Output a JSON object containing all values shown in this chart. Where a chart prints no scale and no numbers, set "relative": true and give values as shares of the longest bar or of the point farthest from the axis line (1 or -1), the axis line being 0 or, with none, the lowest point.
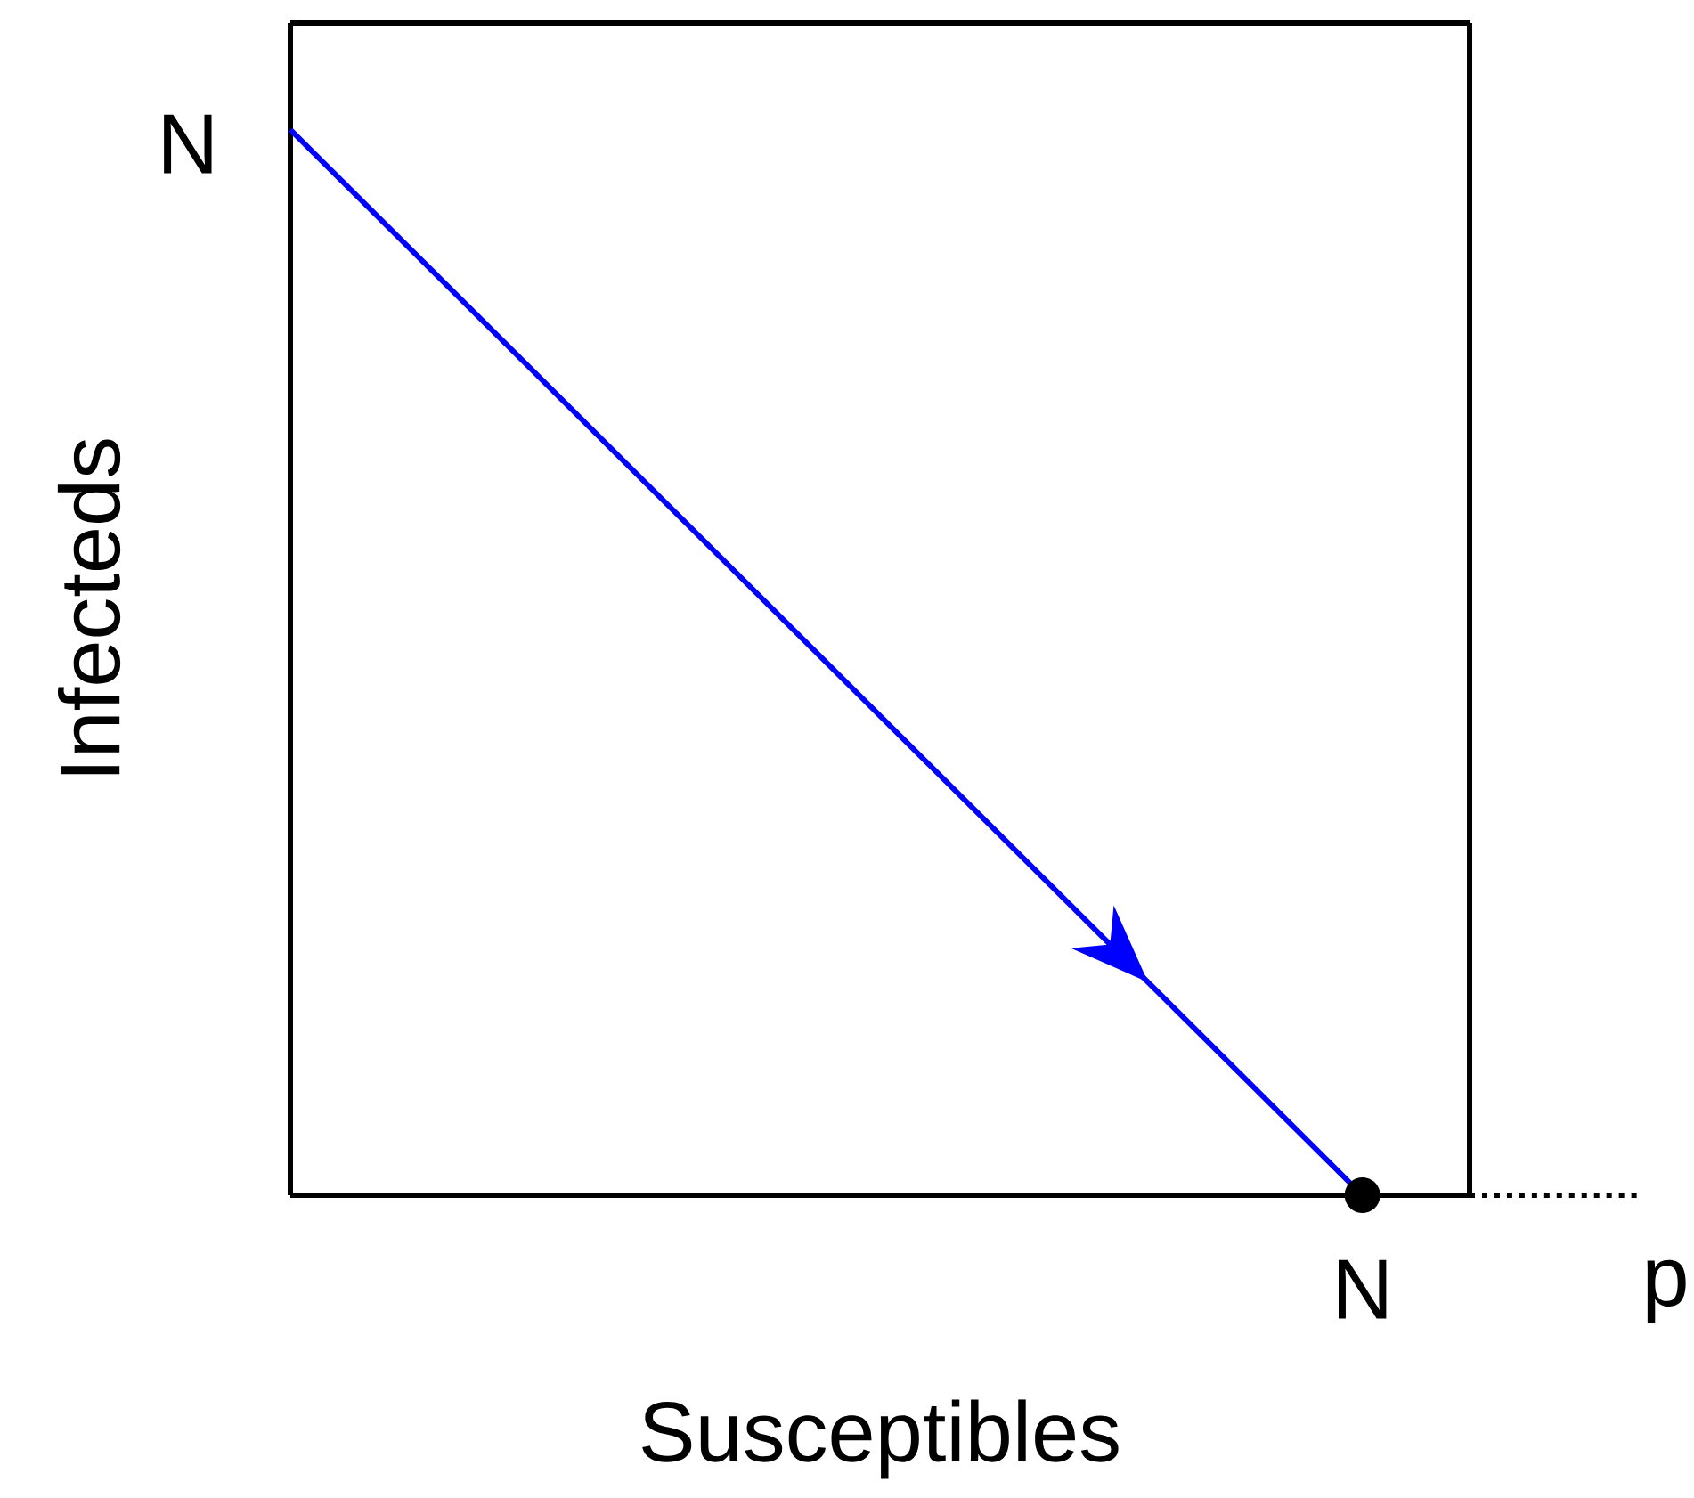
{
  "chart_data": {
    "type": "line",
    "relative": true,
    "xlabel": "Susceptibles",
    "ylabel": "Infecteds",
    "categories": [
      null,
      null
    ],
    "series": [
      {
        "color": "#0000ff",
        "values": [
          1,
          0
        ]
      }
    ],
    "annotations": [
      "N",
      "N",
      "p"
    ]
  }
}
